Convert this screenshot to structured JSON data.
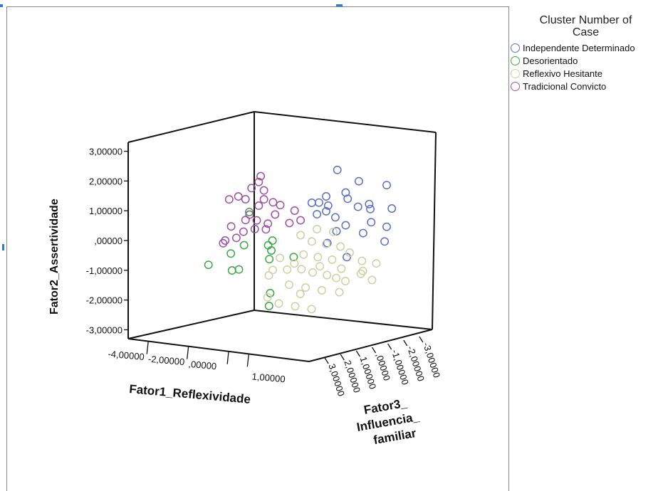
{
  "chart_data": {
    "type": "scatter",
    "projection": "3d",
    "xlabel": "Fator1_Reflexividade",
    "ylabel": "Fator2_Assertividade",
    "zlabel_lines": [
      "Fator3_",
      "Influencia_",
      "familiar"
    ],
    "x_ticks": [
      "-4,00000",
      "-2,00000",
      ",00000",
      "1,00000"
    ],
    "y_ticks": [
      "3,00000",
      "2,00000",
      "1,00000",
      ",00000",
      "-1,00000",
      "-2,00000",
      "-3,00000"
    ],
    "z_ticks": [
      "-3,00000",
      "-2,00000",
      "-1,00000",
      ",00000",
      "1,00000",
      "2,00000",
      "3,00000"
    ],
    "ylim": [
      -3,
      3
    ],
    "legend": {
      "title_lines": [
        "Cluster Number of",
        "Case"
      ],
      "placement": "right"
    },
    "series": [
      {
        "name": "Independente Determinado",
        "color": "#5b6fc7",
        "points": [
          {
            "x": 1.8,
            "y": 2.4,
            "z": -0.6
          },
          {
            "x": 2.4,
            "y": 2.0,
            "z": -1.2
          },
          {
            "x": 3.0,
            "y": 1.8,
            "z": -2.2
          },
          {
            "x": 1.4,
            "y": 1.5,
            "z": -0.4
          },
          {
            "x": 1.9,
            "y": 1.6,
            "z": -1.0
          },
          {
            "x": 1.2,
            "y": 1.3,
            "z": -0.2
          },
          {
            "x": 2.0,
            "y": 1.4,
            "z": -1.0
          },
          {
            "x": 2.6,
            "y": 1.2,
            "z": -1.6
          },
          {
            "x": 3.1,
            "y": 1.0,
            "z": -2.4
          },
          {
            "x": 1.5,
            "y": 1.2,
            "z": -0.4
          },
          {
            "x": 1.0,
            "y": 1.3,
            "z": 0.0
          },
          {
            "x": 2.2,
            "y": 1.1,
            "z": -1.4
          },
          {
            "x": 2.5,
            "y": 1.0,
            "z": -1.8
          },
          {
            "x": 1.1,
            "y": 0.9,
            "z": -0.2
          },
          {
            "x": 1.7,
            "y": 0.8,
            "z": -0.6
          },
          {
            "x": 2.7,
            "y": 0.6,
            "z": -1.6
          },
          {
            "x": 1.9,
            "y": 0.5,
            "z": -1.0
          },
          {
            "x": 3.0,
            "y": 0.4,
            "z": -2.2
          },
          {
            "x": 2.3,
            "y": 0.2,
            "z": -1.6
          },
          {
            "x": 1.6,
            "y": 0.3,
            "z": -0.8
          },
          {
            "x": 1.3,
            "y": -0.1,
            "z": -0.6
          },
          {
            "x": 2.9,
            "y": -0.1,
            "z": -2.2
          },
          {
            "x": 1.8,
            "y": -0.6,
            "z": -1.2
          },
          {
            "x": 1.4,
            "y": 1.0,
            "z": -0.4
          }
        ]
      },
      {
        "name": "Desorientado",
        "color": "#3aa843",
        "points": [
          {
            "x": -3.2,
            "y": -1.0,
            "z": 1.2
          },
          {
            "x": -2.4,
            "y": -0.6,
            "z": 0.8
          },
          {
            "x": -1.9,
            "y": -0.3,
            "z": 0.6
          },
          {
            "x": -2.5,
            "y": -1.2,
            "z": 0.6
          },
          {
            "x": -2.0,
            "y": -1.1,
            "z": 0.8
          },
          {
            "x": -1.8,
            "y": 0.8,
            "z": 0.4
          },
          {
            "x": -0.8,
            "y": -0.1,
            "z": 0.2
          },
          {
            "x": -0.7,
            "y": -0.4,
            "z": 0.4
          },
          {
            "x": -0.8,
            "y": -0.7,
            "z": 0.4
          },
          {
            "x": 0.1,
            "y": -0.6,
            "z": 0.0
          },
          {
            "x": -0.6,
            "y": -1.8,
            "z": 0.6
          },
          {
            "x": -0.5,
            "y": -2.2,
            "z": 0.8
          },
          {
            "x": -0.7,
            "y": -0.2,
            "z": 0.6
          }
        ]
      },
      {
        "name": "Reflexivo Hesitante",
        "color": "#cfcfa2",
        "points": [
          {
            "x": 0.6,
            "y": 0.2,
            "z": 0.2
          },
          {
            "x": 1.0,
            "y": 0.0,
            "z": 0.0
          },
          {
            "x": 1.4,
            "y": -0.1,
            "z": -0.4
          },
          {
            "x": 1.8,
            "y": -0.2,
            "z": -0.8
          },
          {
            "x": 2.1,
            "y": -0.4,
            "z": -1.0
          },
          {
            "x": 2.4,
            "y": -0.7,
            "z": -1.4
          },
          {
            "x": 2.8,
            "y": -0.8,
            "z": -1.8
          },
          {
            "x": 0.9,
            "y": -0.4,
            "z": 0.4
          },
          {
            "x": 1.3,
            "y": -0.5,
            "z": 0.0
          },
          {
            "x": 1.7,
            "y": -0.6,
            "z": -0.4
          },
          {
            "x": 2.0,
            "y": -0.9,
            "z": -0.6
          },
          {
            "x": 2.6,
            "y": -1.0,
            "z": -1.2
          },
          {
            "x": 0.4,
            "y": -0.9,
            "z": 0.8
          },
          {
            "x": 0.8,
            "y": -0.9,
            "z": 0.4
          },
          {
            "x": 1.2,
            "y": -1.0,
            "z": 0.2
          },
          {
            "x": 1.6,
            "y": -1.1,
            "z": -0.2
          },
          {
            "x": 1.9,
            "y": -1.2,
            "z": -0.4
          },
          {
            "x": 0.5,
            "y": -1.4,
            "z": 0.8
          },
          {
            "x": 1.0,
            "y": -1.5,
            "z": 0.4
          },
          {
            "x": 1.5,
            "y": -1.6,
            "z": 0.0
          },
          {
            "x": -0.2,
            "y": -1.1,
            "z": 1.2
          },
          {
            "x": -0.1,
            "y": -1.8,
            "z": 1.4
          },
          {
            "x": 0.3,
            "y": -2.0,
            "z": 1.2
          },
          {
            "x": 0.8,
            "y": -2.1,
            "z": 0.8
          },
          {
            "x": 1.3,
            "y": -2.2,
            "z": 0.4
          },
          {
            "x": 2.2,
            "y": -1.3,
            "z": -0.6
          },
          {
            "x": 2.9,
            "y": -1.3,
            "z": -1.4
          },
          {
            "x": 0.2,
            "y": -0.5,
            "z": 1.0
          },
          {
            "x": 1.1,
            "y": 0.4,
            "z": -0.2
          },
          {
            "x": 1.6,
            "y": 0.3,
            "z": -0.6
          },
          {
            "x": 0.6,
            "y": -0.7,
            "z": 0.6
          },
          {
            "x": 1.4,
            "y": -0.8,
            "z": 0.0
          },
          {
            "x": 1.9,
            "y": -1.7,
            "z": -0.6
          },
          {
            "x": 2.5,
            "y": -1.1,
            "z": -1.2
          },
          {
            "x": 0.9,
            "y": -1.7,
            "z": 0.6
          },
          {
            "x": 0.0,
            "y": -0.9,
            "z": 1.2
          }
        ]
      },
      {
        "name": "Tradicional Convicto",
        "color": "#9d4fa3",
        "points": [
          {
            "x": -0.6,
            "y": 2.2,
            "z": 1.2
          },
          {
            "x": -0.7,
            "y": 2.0,
            "z": 1.2
          },
          {
            "x": -0.9,
            "y": 1.8,
            "z": 1.4
          },
          {
            "x": -0.6,
            "y": 1.7,
            "z": 1.0
          },
          {
            "x": -1.4,
            "y": 1.5,
            "z": 1.6
          },
          {
            "x": -1.7,
            "y": 1.4,
            "z": 1.8
          },
          {
            "x": -1.2,
            "y": 1.4,
            "z": 1.4
          },
          {
            "x": -0.6,
            "y": 1.4,
            "z": 1.0
          },
          {
            "x": -0.3,
            "y": 1.3,
            "z": 0.8
          },
          {
            "x": -0.1,
            "y": 1.2,
            "z": 0.6
          },
          {
            "x": -0.2,
            "y": 0.9,
            "z": 0.8
          },
          {
            "x": -0.7,
            "y": 1.2,
            "z": 1.2
          },
          {
            "x": -1.0,
            "y": 0.9,
            "z": 1.4
          },
          {
            "x": -1.2,
            "y": 0.7,
            "z": 1.4
          },
          {
            "x": -1.6,
            "y": 0.5,
            "z": 1.8
          },
          {
            "x": -0.8,
            "y": 0.7,
            "z": 1.2
          },
          {
            "x": -0.4,
            "y": 0.6,
            "z": 1.0
          },
          {
            "x": 0.2,
            "y": 0.6,
            "z": 0.4
          },
          {
            "x": 0.6,
            "y": 0.7,
            "z": 0.2
          },
          {
            "x": 0.3,
            "y": 1.0,
            "z": 0.2
          },
          {
            "x": -1.3,
            "y": 0.3,
            "z": 1.4
          },
          {
            "x": -1.5,
            "y": 0.1,
            "z": 1.6
          },
          {
            "x": -1.9,
            "y": 0.0,
            "z": 1.8
          },
          {
            "x": -2.0,
            "y": -0.1,
            "z": 1.8
          },
          {
            "x": -0.5,
            "y": 0.4,
            "z": 1.0
          },
          {
            "x": -0.9,
            "y": 0.4,
            "z": 1.2
          }
        ]
      }
    ]
  }
}
